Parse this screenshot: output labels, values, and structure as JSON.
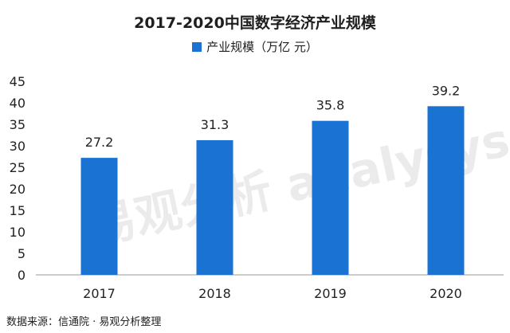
{
  "source_note": "数据来源：信通院 · 易观分析整理",
  "watermark": "易观分析 analysys",
  "chart_data": {
    "type": "bar",
    "title": "2017-2020中国数字经济产业规模",
    "categories": [
      "2017",
      "2018",
      "2019",
      "2020"
    ],
    "series": [
      {
        "name": "产业规模（万亿 元）",
        "values": [
          27.2,
          31.3,
          35.8,
          39.2
        ]
      }
    ],
    "data_labels": [
      "27.2",
      "31.3",
      "35.8",
      "39.2"
    ],
    "y_ticks": [
      "0",
      "5",
      "10",
      "15",
      "20",
      "25",
      "30",
      "35",
      "40",
      "45"
    ],
    "ylim": [
      0,
      45
    ],
    "grid": false,
    "legend_position": "top-center",
    "bar_color": "#1a73d3"
  }
}
